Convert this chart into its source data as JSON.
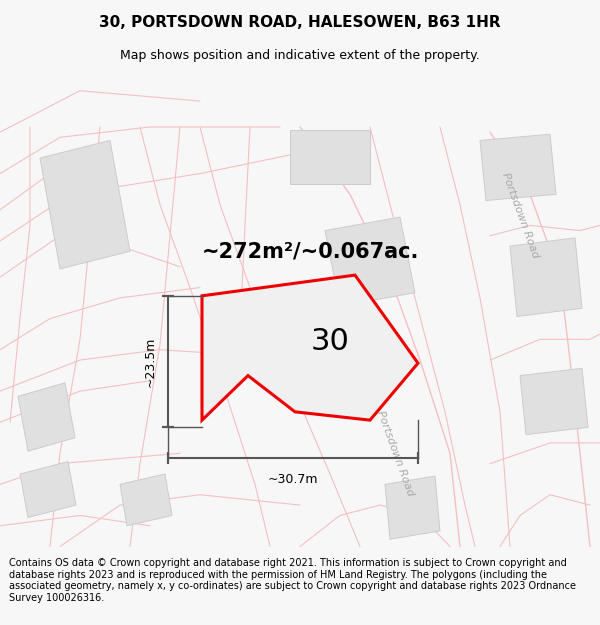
{
  "title_line1": "30, PORTSDOWN ROAD, HALESOWEN, B63 1HR",
  "title_line2": "Map shows position and indicative extent of the property.",
  "footer_text": "Contains OS data © Crown copyright and database right 2021. This information is subject to Crown copyright and database rights 2023 and is reproduced with the permission of HM Land Registry. The polygons (including the associated geometry, namely x, y co-ordinates) are subject to Crown copyright and database rights 2023 Ordnance Survey 100026316.",
  "area_label": "~272m²/~0.067ac.",
  "property_number": "30",
  "dim_height": "~23.5m",
  "dim_width": "~30.7m",
  "road_label_top": "Portsdown Road",
  "road_label_bottom": "Portsdown Road",
  "bg_color": "#f7f7f7",
  "map_bg": "#f2f2f2",
  "polygon_color": "#ee0000",
  "polygon_fill": "#f0f0f0",
  "building_color": "#e0e0e0",
  "building_edge": "#cccccc",
  "road_fill_color": "#f5f5f5",
  "road_line_color": "#f5c0c0",
  "dim_line_color": "#555555",
  "title_fontsize": 11,
  "subtitle_fontsize": 9,
  "footer_fontsize": 7.0,
  "area_fontsize": 15,
  "number_fontsize": 22,
  "road_label_color": "#aaaaaa",
  "road_label_fontsize": 8
}
